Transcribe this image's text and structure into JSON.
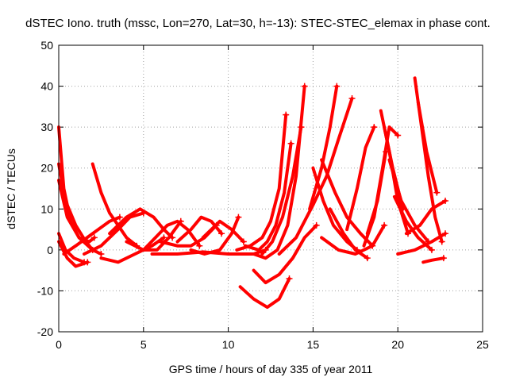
{
  "chart_data": {
    "type": "line",
    "title": "dSTEC Iono. truth (mssc, Lon=270, Lat=30, h=-13): STEC-STEC_elemax in phase cont.",
    "xlabel": "GPS time / hours of day 335 of year 2011",
    "ylabel": "dSTEC  / TECUs",
    "xlim": [
      0,
      25
    ],
    "ylim": [
      -20,
      50
    ],
    "xticks": [
      0,
      5,
      10,
      15,
      20,
      25
    ],
    "yticks": [
      -20,
      -10,
      0,
      10,
      20,
      30,
      40,
      50
    ],
    "xtick_labels": [
      "0",
      "5",
      "10",
      "15",
      "20",
      "25"
    ],
    "ytick_labels": [
      "-20",
      "-10",
      "0",
      "10",
      "20",
      "30",
      "40",
      "50"
    ],
    "grid": true,
    "color": "#ff0000",
    "marker": "plus",
    "series": [
      {
        "x": [
          0.0,
          0.3,
          0.7,
          1.2,
          1.8,
          2.1
        ],
        "y": [
          30,
          15,
          7,
          3,
          2,
          3
        ]
      },
      {
        "x": [
          0.0,
          0.4,
          1.0,
          1.6,
          2.0
        ],
        "y": [
          21,
          12,
          6,
          2,
          0
        ]
      },
      {
        "x": [
          0.0,
          0.5,
          1.2,
          2.0,
          2.5
        ],
        "y": [
          17,
          8,
          3,
          0,
          -1
        ]
      },
      {
        "x": [
          0.0,
          0.4,
          0.9,
          1.5
        ],
        "y": [
          4,
          0,
          -2,
          -3
        ]
      },
      {
        "x": [
          0.0,
          0.5,
          1.0,
          1.7
        ],
        "y": [
          2,
          -2,
          -4,
          -3
        ]
      },
      {
        "x": [
          0.3,
          1.0,
          2.0,
          3.0,
          3.6
        ],
        "y": [
          -1,
          1,
          4,
          7,
          8
        ]
      },
      {
        "x": [
          2.0,
          2.5,
          3.0,
          3.5,
          4.0,
          4.6
        ],
        "y": [
          21,
          14,
          9,
          6,
          3,
          1
        ]
      },
      {
        "x": [
          2.5,
          3.5,
          4.5,
          5.5,
          6.2
        ],
        "y": [
          -2,
          -3,
          -1,
          1,
          3
        ]
      },
      {
        "x": [
          3.0,
          4.0,
          4.8,
          5.6,
          6.2,
          6.7
        ],
        "y": [
          4,
          8,
          10,
          8,
          5,
          3
        ]
      },
      {
        "x": [
          1.5,
          2.5,
          3.5,
          4.2,
          5.0
        ],
        "y": [
          -1,
          1,
          5,
          8,
          9
        ]
      },
      {
        "x": [
          4.0,
          5.0,
          5.8,
          6.5,
          7.2
        ],
        "y": [
          2,
          0,
          0,
          3,
          7
        ]
      },
      {
        "x": [
          5.0,
          5.7,
          6.4,
          7.0,
          7.6,
          8.3
        ],
        "y": [
          0,
          3,
          6,
          7,
          5,
          1
        ]
      },
      {
        "x": [
          6.0,
          7.0,
          7.8,
          8.6,
          9.3
        ],
        "y": [
          2,
          1,
          1,
          3,
          6
        ]
      },
      {
        "x": [
          7.0,
          7.8,
          8.4,
          9.0,
          9.6
        ],
        "y": [
          2,
          5,
          8,
          7,
          4
        ]
      },
      {
        "x": [
          7.8,
          8.6,
          9.5,
          10.2,
          10.6
        ],
        "y": [
          0,
          -1,
          0,
          4,
          8
        ]
      },
      {
        "x": [
          8.5,
          9.5,
          10.2,
          10.9
        ],
        "y": [
          3,
          7,
          5,
          2
        ]
      },
      {
        "x": [
          5.5,
          7.0,
          8.5,
          10.0,
          11.5,
          12.2
        ],
        "y": [
          -1,
          -1,
          -0.5,
          -1,
          -1,
          0
        ]
      },
      {
        "x": [
          10.5,
          11.3,
          12.0,
          12.5,
          13.0,
          13.4
        ],
        "y": [
          0,
          1,
          3,
          7,
          15,
          33
        ]
      },
      {
        "x": [
          11.0,
          11.8,
          12.3,
          12.8,
          13.3,
          13.7
        ],
        "y": [
          1,
          0,
          2,
          6,
          14,
          26
        ]
      },
      {
        "x": [
          11.5,
          12.2,
          12.9,
          13.5,
          14.0,
          14.5
        ],
        "y": [
          -1,
          -2,
          0,
          6,
          18,
          40
        ]
      },
      {
        "x": [
          12.0,
          12.6,
          13.2,
          13.8,
          14.3
        ],
        "y": [
          -1,
          2,
          8,
          18,
          30
        ]
      },
      {
        "x": [
          10.7,
          11.5,
          12.3,
          13.0,
          13.6
        ],
        "y": [
          -9,
          -12,
          -14,
          -12,
          -7
        ]
      },
      {
        "x": [
          11.5,
          12.2,
          13.0,
          13.8,
          14.5,
          15.2
        ],
        "y": [
          -5,
          -8,
          -6,
          -2,
          3,
          6
        ]
      },
      {
        "x": [
          13.0,
          14.0,
          15.0,
          15.8,
          16.5,
          17.3
        ],
        "y": [
          -1,
          3,
          11,
          18,
          27,
          37
        ]
      },
      {
        "x": [
          14.8,
          15.5,
          16.0,
          16.4
        ],
        "y": [
          10,
          20,
          30,
          40
        ]
      },
      {
        "x": [
          15.0,
          15.6,
          16.2,
          17.0,
          17.6
        ],
        "y": [
          20,
          12,
          6,
          2,
          0
        ]
      },
      {
        "x": [
          15.5,
          16.3,
          17.0,
          17.8,
          18.5
        ],
        "y": [
          22,
          14,
          8,
          4,
          1
        ]
      },
      {
        "x": [
          16.0,
          16.8,
          17.5,
          18.2
        ],
        "y": [
          10,
          4,
          0,
          -2
        ]
      },
      {
        "x": [
          15.5,
          16.5,
          17.5,
          18.5,
          19.2
        ],
        "y": [
          3,
          0,
          -1,
          1,
          6
        ]
      },
      {
        "x": [
          17.0,
          17.6,
          18.1,
          18.6
        ],
        "y": [
          5,
          15,
          25,
          30
        ]
      },
      {
        "x": [
          18.0,
          18.6,
          19.1,
          19.5,
          20.0
        ],
        "y": [
          1,
          8,
          20,
          30,
          28
        ]
      },
      {
        "x": [
          18.2,
          18.8,
          19.3
        ],
        "y": [
          4,
          12,
          24
        ]
      },
      {
        "x": [
          19.0,
          19.5,
          20.0,
          20.6
        ],
        "y": [
          34,
          24,
          12,
          4
        ]
      },
      {
        "x": [
          19.2,
          19.7,
          20.3
        ],
        "y": [
          30,
          20,
          10
        ]
      },
      {
        "x": [
          19.5,
          20.2,
          21.0,
          21.8
        ],
        "y": [
          22,
          12,
          6,
          2
        ]
      },
      {
        "x": [
          20.0,
          21.0,
          22.0,
          22.8
        ],
        "y": [
          -1,
          0,
          2,
          4
        ]
      },
      {
        "x": [
          21.0,
          21.4,
          21.8,
          22.2,
          22.6
        ],
        "y": [
          42,
          30,
          18,
          8,
          2
        ]
      },
      {
        "x": [
          21.2,
          21.7,
          22.3
        ],
        "y": [
          36,
          24,
          14
        ]
      },
      {
        "x": [
          21.5,
          22.0,
          22.7
        ],
        "y": [
          -3,
          -2.5,
          -2
        ]
      },
      {
        "x": [
          20.5,
          21.3,
          22.0,
          22.8
        ],
        "y": [
          4,
          6,
          10,
          12
        ]
      },
      {
        "x": [
          19.8,
          20.5,
          21.2,
          22.0
        ],
        "y": [
          13,
          7,
          3,
          0
        ]
      }
    ]
  }
}
